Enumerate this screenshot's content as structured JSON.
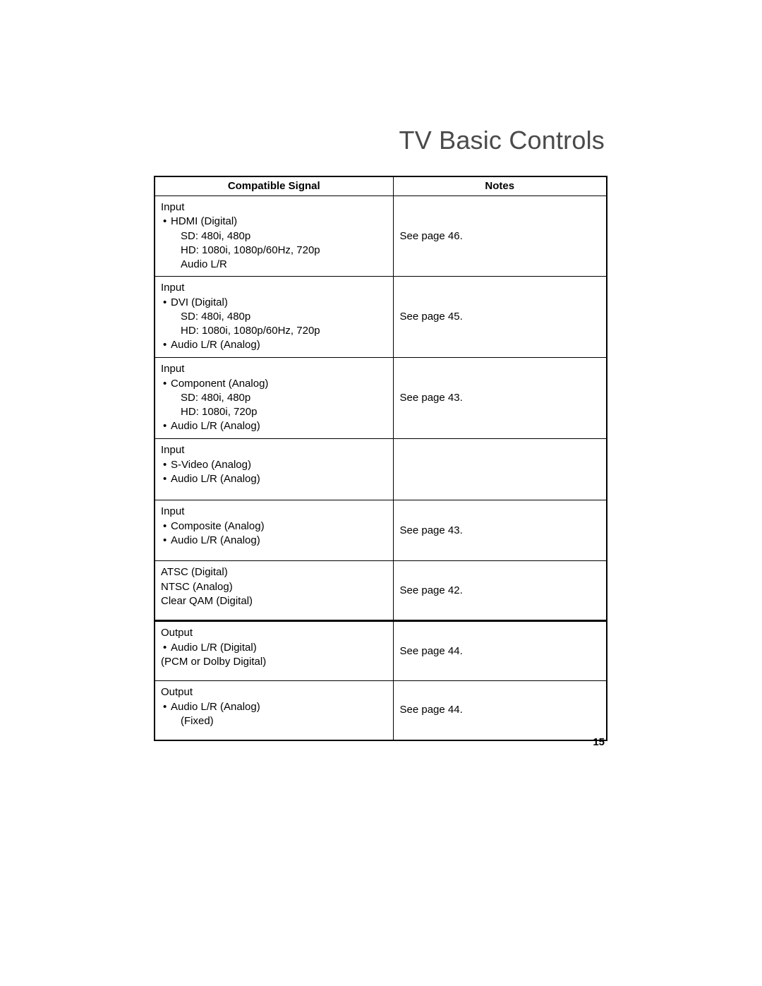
{
  "title": "TV Basic Controls",
  "page_number": "15",
  "columns": [
    "Compatible Signal",
    "Notes"
  ],
  "rows": [
    {
      "signal_lead": "Input",
      "bullets": [
        {
          "text": "HDMI (Digital)",
          "sub": [
            "SD:  480i, 480p",
            "HD:  1080i, 1080p/60Hz, 720p",
            "Audio L/R"
          ]
        }
      ],
      "note": "See page 46.",
      "note_valign": "mid"
    },
    {
      "signal_lead": "Input",
      "bullets": [
        {
          "text": "DVI (Digital)",
          "sub": [
            "SD:  480i, 480p",
            "HD:  1080i, 1080p/60Hz, 720p"
          ]
        },
        {
          "text": "Audio L/R (Analog)"
        }
      ],
      "note": "See page 45.",
      "note_valign": "mid"
    },
    {
      "signal_lead": "Input",
      "bullets": [
        {
          "text": "Component (Analog)",
          "sub": [
            "SD:  480i, 480p",
            "HD:  1080i, 720p"
          ]
        },
        {
          "text": "Audio L/R (Analog)"
        }
      ],
      "note": "See page 43.",
      "note_valign": "mid"
    },
    {
      "signal_lead": "Input",
      "bullets": [
        {
          "text": "S-Video (Analog)"
        },
        {
          "text": "Audio L/R (Analog)"
        }
      ],
      "note": "",
      "note_valign": "top"
    },
    {
      "signal_lead": "Input",
      "bullets": [
        {
          "text": "Composite (Analog)"
        },
        {
          "text": "Audio L/R (Analog)"
        }
      ],
      "note": "See page 43.",
      "note_valign": "mid"
    },
    {
      "plain_lines": [
        "ATSC (Digital)",
        "NTSC (Analog)",
        "Clear QAM (Digital)"
      ],
      "note": "See page 42.",
      "note_valign": "mid"
    },
    {
      "signal_lead": "Output",
      "bullets": [
        {
          "text": "Audio L/R (Digital)"
        }
      ],
      "trailer": "(PCM or Dolby Digital)",
      "note": "See page 44.",
      "note_valign": "mid"
    },
    {
      "signal_lead": "Output",
      "bullets": [
        {
          "text": "Audio L/R (Analog)",
          "sub": [
            "(Fixed)"
          ]
        }
      ],
      "note": "See page 44.",
      "note_valign": "mid"
    }
  ]
}
